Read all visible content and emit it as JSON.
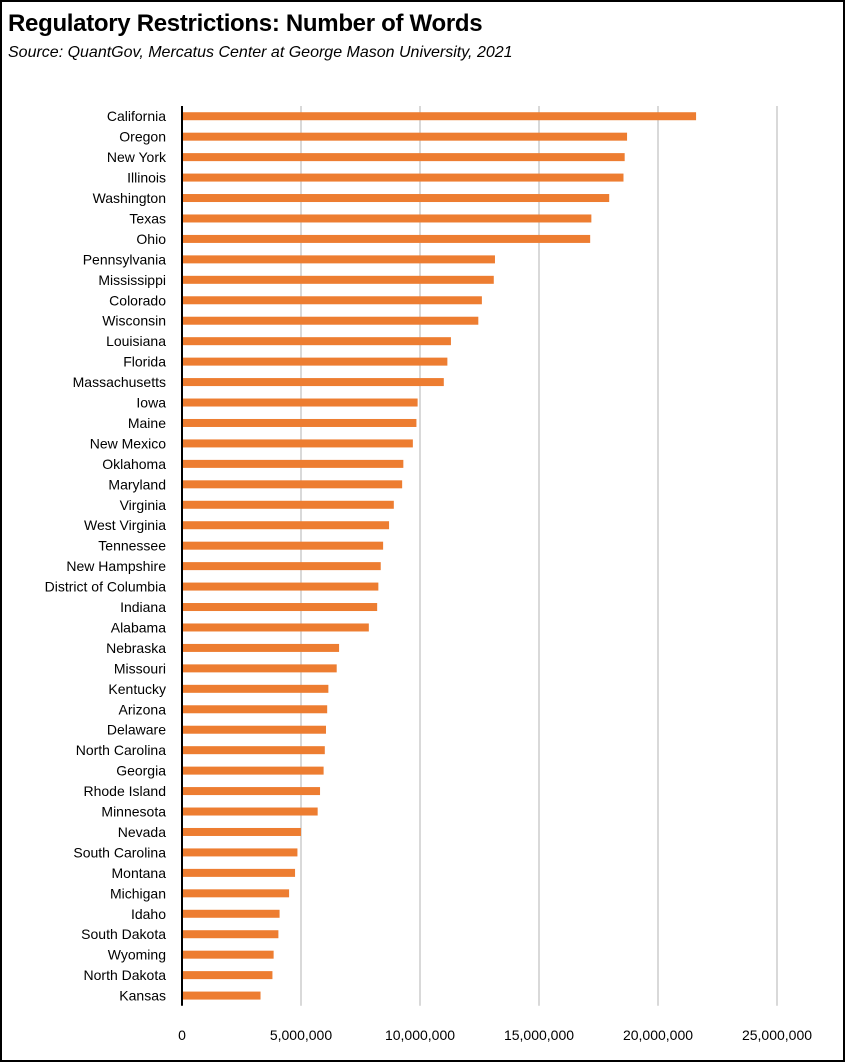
{
  "chart_data": {
    "type": "bar",
    "orientation": "horizontal",
    "title": "Regulatory Restrictions:  Number of Words",
    "subtitle": "Source:  QuantGov, Mercatus Center at George Mason University, 2021",
    "xlabel": "",
    "ylabel": "",
    "xlim": [
      0,
      25000000
    ],
    "grid": true,
    "bar_color": "#ED7D31",
    "x_ticks": [
      "0",
      "5,000,000",
      "10,000,000",
      "15,000,000",
      "20,000,000",
      "25,000,000"
    ],
    "x_tick_values": [
      0,
      5000000,
      10000000,
      15000000,
      20000000,
      25000000
    ],
    "categories": [
      "California",
      "Oregon",
      "New York",
      "Illinois",
      "Washington",
      "Texas",
      "Ohio",
      "Pennsylvania",
      "Mississippi",
      "Colorado",
      "Wisconsin",
      "Louisiana",
      "Florida",
      "Massachusetts",
      "Iowa",
      "Maine",
      "New Mexico",
      "Oklahoma",
      "Maryland",
      "Virginia",
      "West Virginia",
      "Tennessee",
      "New Hampshire",
      "District of Columbia",
      "Indiana",
      "Alabama",
      "Nebraska",
      "Missouri",
      "Kentucky",
      "Arizona",
      "Delaware",
      "North Carolina",
      "Georgia",
      "Rhode Island",
      "Minnesota",
      "Nevada",
      "South Carolina",
      "Montana",
      "Michigan",
      "Idaho",
      "South Dakota",
      "Wyoming",
      "North Dakota",
      "Kansas"
    ],
    "values": [
      21600000,
      18700000,
      18600000,
      18550000,
      17950000,
      17200000,
      17150000,
      13150000,
      13100000,
      12600000,
      12450000,
      11300000,
      11150000,
      11000000,
      9900000,
      9850000,
      9700000,
      9300000,
      9250000,
      8900000,
      8700000,
      8450000,
      8350000,
      8250000,
      8200000,
      7850000,
      6600000,
      6500000,
      6150000,
      6100000,
      6050000,
      6000000,
      5950000,
      5800000,
      5700000,
      5000000,
      4850000,
      4750000,
      4500000,
      4100000,
      4050000,
      3850000,
      3800000,
      3300000
    ]
  }
}
